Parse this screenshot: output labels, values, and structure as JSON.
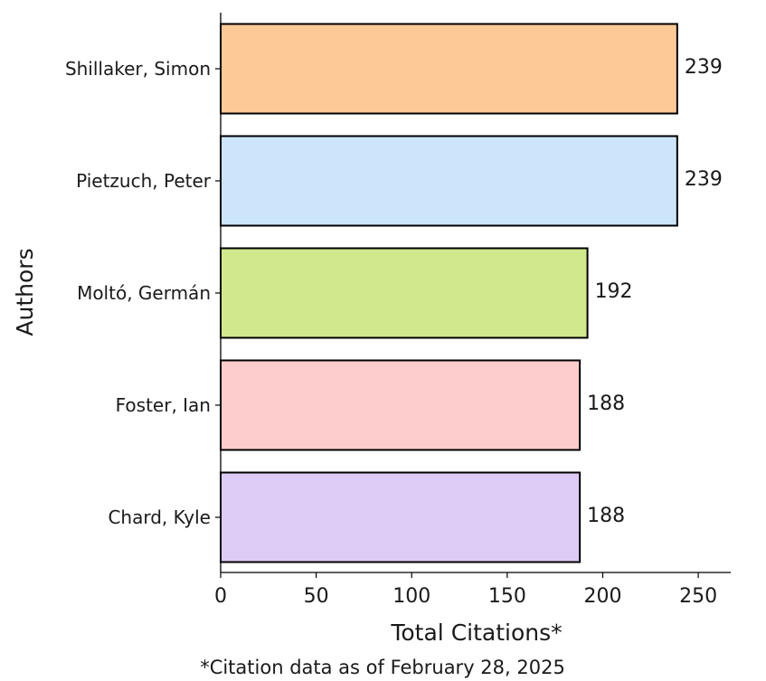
{
  "chart_data": {
    "type": "bar",
    "orientation": "horizontal",
    "categories": [
      "Shillaker, Simon",
      "Pietzuch, Peter",
      "Moltó, Germán",
      "Foster, Ian",
      "Chard, Kyle"
    ],
    "values": [
      239,
      239,
      192,
      188,
      188
    ],
    "data_labels": [
      "239",
      "239",
      "192",
      "188",
      "188"
    ],
    "colors": [
      "#fdc997",
      "#cce5fb",
      "#d0e98d",
      "#fdcdcd",
      "#ddcbf5"
    ],
    "xlabel": "Total Citations*",
    "ylabel": "Authors",
    "xlim": [
      0,
      267
    ],
    "xticks": [
      0,
      50,
      100,
      150,
      200,
      250
    ],
    "xtick_labels": [
      "0",
      "50",
      "100",
      "150",
      "200",
      "250"
    ],
    "grid": false,
    "legend": "none",
    "footnote": "*Citation data as of February 28, 2025"
  }
}
